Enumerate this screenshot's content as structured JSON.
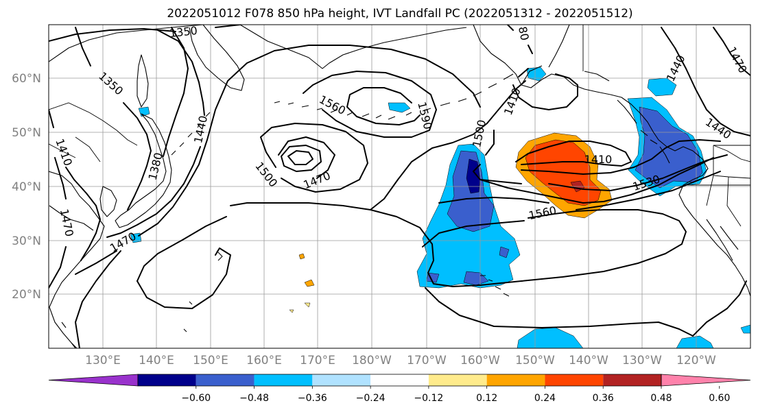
{
  "title": "2022051012 F078 850 hPa height, IVT Landfall PC (2022051312 - 2022051512)",
  "map": {
    "lat_labels": [
      "60°N",
      "50°N",
      "40°N",
      "30°N",
      "20°N"
    ],
    "lon_labels": [
      "130°E",
      "140°E",
      "150°E",
      "160°E",
      "170°E",
      "180°W",
      "170°W",
      "160°W",
      "150°W",
      "140°W",
      "130°W",
      "120°W"
    ],
    "grid": true
  },
  "contours": {
    "variable": "850 hPa height",
    "labels": [
      "1350",
      "1350",
      "1410",
      "1470",
      "1440",
      "1380",
      "1470",
      "1500",
      "1470",
      "1560",
      "1590",
      "1500",
      "1410",
      "1410",
      "1530",
      "1560",
      "1440",
      "1440",
      "1470",
      "80"
    ]
  },
  "colorbar": {
    "extend": "both",
    "colors": [
      "#9932cc",
      "#00008b",
      "#3a5fcd",
      "#00bfff",
      "#b0e2ff",
      "#ffffff",
      "#ffeb8c",
      "#ffa500",
      "#ff4500",
      "#b22222",
      "#ff82ab"
    ],
    "tick_labels": [
      "−0.60",
      "−0.48",
      "−0.36",
      "−0.24",
      "−0.12",
      "0.12",
      "0.24",
      "0.36",
      "0.48",
      "0.60"
    ]
  },
  "colors": {
    "positive_core": "#ff4500",
    "positive_edge": "#ffa500",
    "negative_core": "#00008b",
    "negative_mid": "#3a5fcd",
    "negative_edge": "#00bfff"
  }
}
